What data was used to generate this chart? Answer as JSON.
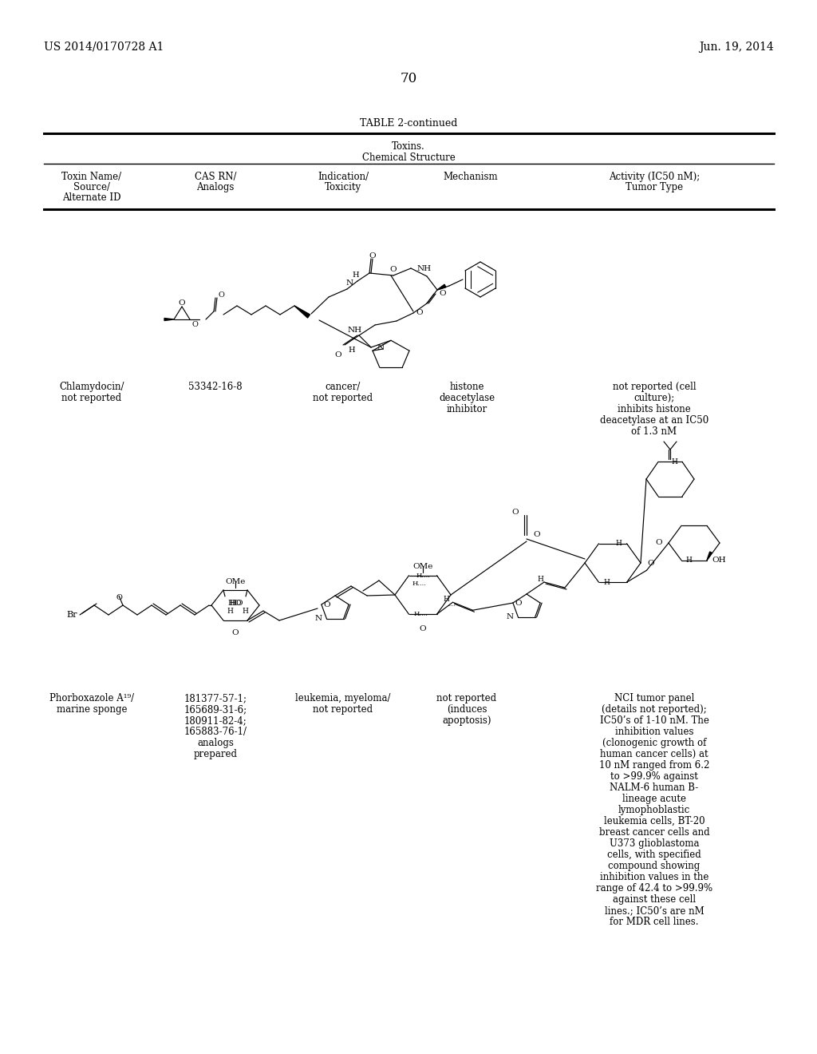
{
  "page_number": "70",
  "patent_number": "US 2014/0170728 A1",
  "patent_date": "Jun. 19, 2014",
  "table_title": "TABLE 2-continued",
  "table_subtitle1": "Toxins.",
  "table_subtitle2": "Chemical Structure",
  "col_headers": [
    [
      "Toxin Name/",
      "Source/",
      "Alternate ID"
    ],
    [
      "CAS RN/",
      "Analogs"
    ],
    [
      "Indication/",
      "Toxicity"
    ],
    [
      "Mechanism"
    ],
    [
      "Activity (IC50 nM);",
      "Tumor Type"
    ]
  ],
  "row1": {
    "name": [
      "Chlamydocin/",
      "not reported"
    ],
    "cas": [
      "53342-16-8"
    ],
    "indication": [
      "cancer/",
      "not reported"
    ],
    "mechanism": [
      "histone",
      "deacetylase",
      "inhibitor"
    ],
    "activity": [
      "not reported (cell",
      "culture);",
      "inhibits histone",
      "deacetylase at an IC50",
      "of 1.3 nM"
    ]
  },
  "row2": {
    "name": [
      "Phorboxazole A¹⁹/",
      "marine sponge"
    ],
    "cas": [
      "181377-57-1;",
      "165689-31-6;",
      "180911-82-4;",
      "165883-76-1/",
      "analogs",
      "prepared"
    ],
    "indication": [
      "leukemia, myeloma/",
      "not reported"
    ],
    "mechanism": [
      "not reported",
      "(induces",
      "apoptosis)"
    ],
    "activity": [
      "NCI tumor panel",
      "(details not reported);",
      "IC50’s of 1-10 nM. The",
      "inhibition values",
      "(clonogenic growth of",
      "human cancer cells) at",
      "10 nM ranged from 6.2",
      "to >99.9% against",
      "NALM-6 human B-",
      "lineage acute",
      "lymophoblastic",
      "leukemia cells, BT-20",
      "breast cancer cells and",
      "U373 glioblastoma",
      "cells, with specified",
      "compound showing",
      "inhibition values in the",
      "range of 42.4 to >99.9%",
      "against these cell",
      "lines.; IC50’s are nM",
      "for MDR cell lines."
    ]
  },
  "bg_color": "#ffffff",
  "text_color": "#000000",
  "line_color": "#000000",
  "font_size": 8.5,
  "title_font_size": 9,
  "header_font_size": 10
}
